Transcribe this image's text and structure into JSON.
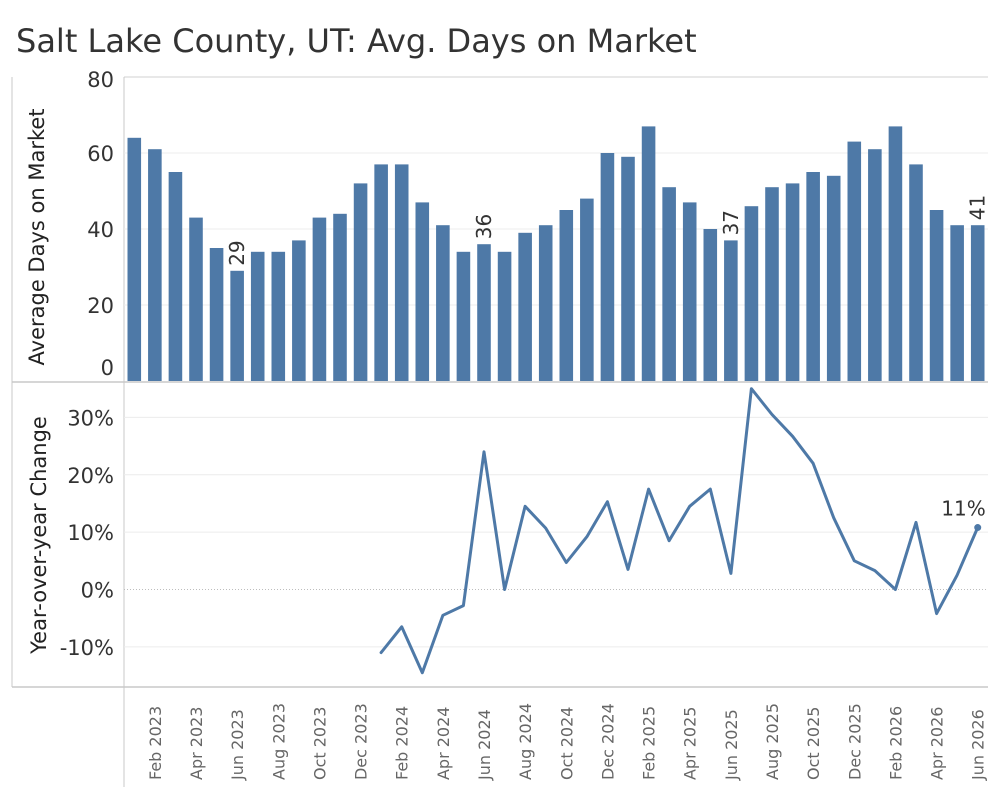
{
  "title": "Salt Lake County, UT: Avg. Days on Market",
  "chart_data": [
    {
      "type": "bar",
      "ylabel": "Average Days on Market",
      "ylim": [
        0,
        80
      ],
      "yticks": [
        0,
        20,
        40,
        60,
        80
      ],
      "color": "#4e79a7",
      "grid": true,
      "x": [
        "Jan 2023",
        "Feb 2023",
        "Mar 2023",
        "Apr 2023",
        "May 2023",
        "Jun 2023",
        "Jul 2023",
        "Aug 2023",
        "Sep 2023",
        "Oct 2023",
        "Nov 2023",
        "Dec 2023",
        "Jan 2024",
        "Feb 2024",
        "Mar 2024",
        "Apr 2024",
        "May 2024",
        "Jun 2024",
        "Jul 2024",
        "Aug 2024",
        "Sep 2024",
        "Oct 2024",
        "Nov 2024",
        "Dec 2024",
        "Jan 2025",
        "Feb 2025",
        "Mar 2025",
        "Apr 2025",
        "May 2025",
        "Jun 2025",
        "Jul 2025",
        "Aug 2025",
        "Sep 2025",
        "Oct 2025",
        "Nov 2025",
        "Dec 2025",
        "Jan 2026",
        "Feb 2026",
        "Mar 2026",
        "Apr 2026",
        "May 2026",
        "Jun 2026"
      ],
      "values": [
        64,
        61,
        55,
        43,
        35,
        29,
        34,
        34,
        37,
        43,
        44,
        52,
        57,
        57,
        47,
        41,
        34,
        36,
        34,
        39,
        41,
        45,
        48,
        60,
        59,
        67,
        51,
        47,
        40,
        37,
        46,
        51,
        52,
        55,
        54,
        63,
        61,
        67,
        57,
        45,
        41,
        41
      ],
      "data_labels": [
        {
          "index": 5,
          "text": "29"
        },
        {
          "index": 17,
          "text": "36"
        },
        {
          "index": 29,
          "text": "37"
        },
        {
          "index": 41,
          "text": "41"
        }
      ]
    },
    {
      "type": "line",
      "ylabel": "Year-over-year Change",
      "ylim": [
        -0.17,
        0.36
      ],
      "yticks": [
        {
          "value": 0.3,
          "label": "30%"
        },
        {
          "value": 0.2,
          "label": "20%"
        },
        {
          "value": 0.1,
          "label": "10%"
        },
        {
          "value": 0.0,
          "label": "0%"
        },
        {
          "value": -0.1,
          "label": "-10%"
        }
      ],
      "color": "#4e79a7",
      "start_index": 12,
      "values": [
        -0.11,
        -0.065,
        -0.145,
        -0.045,
        -0.028,
        0.24,
        0.0,
        0.145,
        0.107,
        0.047,
        0.092,
        0.153,
        0.035,
        0.175,
        0.085,
        0.145,
        0.175,
        0.028,
        0.35,
        0.305,
        0.267,
        0.22,
        0.125,
        0.05,
        0.033,
        0.0,
        0.117,
        -0.042,
        0.025,
        0.108
      ],
      "data_labels": [
        {
          "index": 41,
          "text": "11%"
        }
      ]
    }
  ],
  "x_axis": {
    "tick_labels": [
      "Feb 2023",
      "Apr 2023",
      "Jun 2023",
      "Aug 2023",
      "Oct 2023",
      "Dec 2023",
      "Feb 2024",
      "Apr 2024",
      "Jun 2024",
      "Aug 2024",
      "Oct 2024",
      "Dec 2024",
      "Feb 2025",
      "Apr 2025",
      "Jun 2025",
      "Aug 2025",
      "Oct 2025",
      "Dec 2025",
      "Feb 2026",
      "Apr 2026",
      "Jun 2026"
    ],
    "tick_indices": [
      1,
      3,
      5,
      7,
      9,
      11,
      13,
      15,
      17,
      19,
      21,
      23,
      25,
      27,
      29,
      31,
      33,
      35,
      37,
      39,
      41
    ]
  }
}
